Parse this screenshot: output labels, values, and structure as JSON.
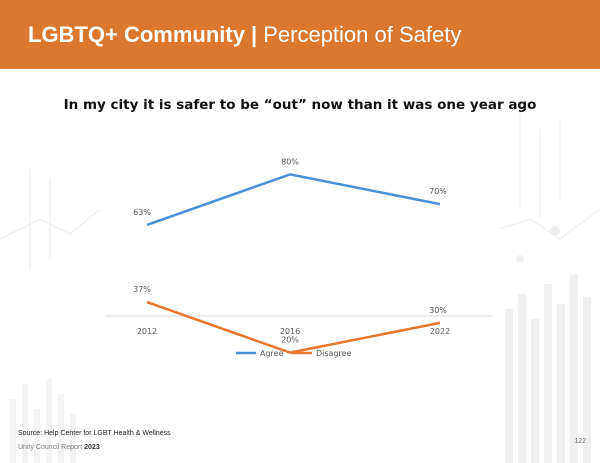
{
  "header": {
    "title_bold": "LGBTQ+ Community |",
    "title_rest": "Perception of Safety"
  },
  "chart_data": {
    "type": "line",
    "title": "In my city it is safer to be “out” now than it was one year ago",
    "categories": [
      "2012",
      "2016",
      "2022"
    ],
    "series": [
      {
        "name": "Agree",
        "values": [
          63,
          80,
          70
        ],
        "labels": [
          "63%",
          "80%",
          "70%"
        ],
        "color": "#4a90d9"
      },
      {
        "name": "Disagree",
        "values": [
          37,
          20,
          30
        ],
        "labels": [
          "37%",
          "20%",
          "30%"
        ],
        "color": "#e8762c"
      }
    ],
    "ylim": [
      0,
      100
    ],
    "grid": false,
    "legend": "bottom"
  },
  "footer": {
    "source": "Source: Help Center for LGBT Health & Wellness",
    "report": "Unity Council Report",
    "year": "2023",
    "page": "122"
  }
}
